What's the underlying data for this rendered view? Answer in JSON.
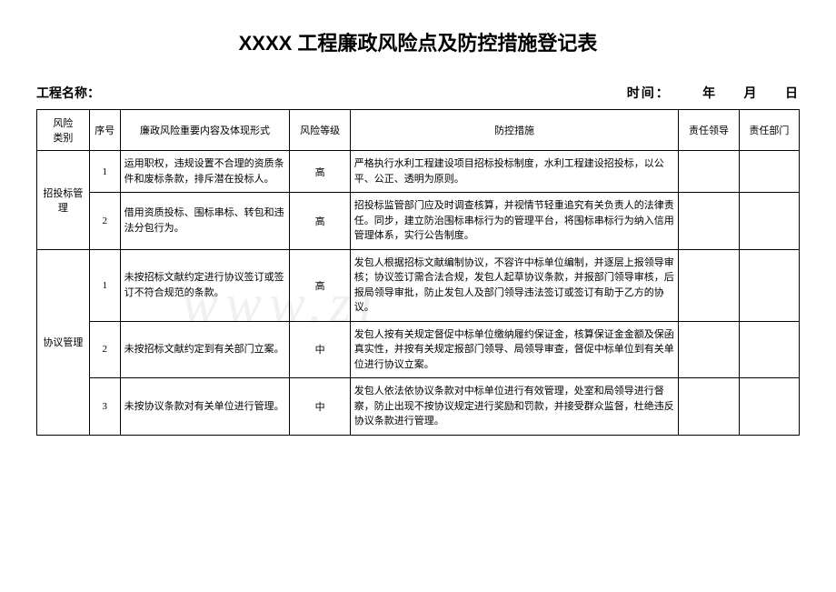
{
  "title": "XXXX 工程廉政风险点及防控措施登记表",
  "header": {
    "project_label": "工程名称：",
    "date_label": "时间：",
    "year_label": "年",
    "month_label": "月",
    "day_label": "日"
  },
  "columns": {
    "category": "风险\n类别",
    "seq": "序号",
    "content": "廉政风险重要内容及体现形式",
    "level": "风险等级",
    "measures": "防控措施",
    "leader": "责任领导",
    "dept": "责任部门"
  },
  "categories": {
    "bidding": "招投标管理",
    "contract": "协议管理"
  },
  "rows": [
    {
      "seq": "1",
      "content": "运用职权，违规设置不合理的资质条件和废标条款，排斥潜在投标人。",
      "level": "高",
      "measures": "严格执行水利工程建设项目招标投标制度，水利工程建设招投标，以公平、公正、透明为原则。"
    },
    {
      "seq": "2",
      "content": "借用资质投标、围标串标、转包和违法分包行为。",
      "level": "高",
      "measures": "招投标监管部门应及时调查核算，并视情节轻重追究有关负责人的法律责任。同步，建立防治围标串标行为的管理平台，将围标串标行为纳入信用管理体系，实行公告制度。"
    },
    {
      "seq": "1",
      "content": "未按招标文献约定进行协议签订或签订不符合规范的条款。",
      "level": "高",
      "measures": "发包人根据招标文献编制协议，不容许中标单位编制，并逐层上报领导审核；协议签订需合法合规，发包人起草协议条款，并报部门领导审核，后报局领导审批，防止发包人及部门领导违法签订或签订有助于乙方的协议。"
    },
    {
      "seq": "2",
      "content": "未按招标文献约定到有关部门立案。",
      "level": "中",
      "measures": "发包人按有关规定督促中标单位缴纳履约保证金，核算保证金金额及保函真实性，并按有关规定报部门领导、局领导审查，督促中标单位到有关单位进行协议立案。"
    },
    {
      "seq": "3",
      "content": "未按协议条款对有关单位进行管理。",
      "level": "中",
      "measures": "发包人依法依协议条款对中标单位进行有效管理，处室和局领导进行督察，防止出现不按协议规定进行奖励和罚款，并接受群众监督，杜绝违反协议条款进行管理。"
    }
  ],
  "watermark": "www.zi",
  "styling": {
    "title_fontsize": 22,
    "body_fontsize": 11,
    "border_color": "#000000",
    "background_color": "#ffffff",
    "watermark_color": "#f0f0f0"
  }
}
